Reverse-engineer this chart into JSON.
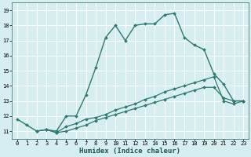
{
  "xlabel": "Humidex (Indice chaleur)",
  "background_color": "#d6eef0",
  "grid_color": "#ffffff",
  "line_color": "#2d7a6e",
  "xlim": [
    -0.5,
    23.5
  ],
  "ylim": [
    10.5,
    19.5
  ],
  "xticks": [
    0,
    1,
    2,
    3,
    4,
    5,
    6,
    7,
    8,
    9,
    10,
    11,
    12,
    13,
    14,
    15,
    16,
    17,
    18,
    19,
    20,
    21,
    22,
    23
  ],
  "yticks": [
    11,
    12,
    13,
    14,
    15,
    16,
    17,
    18,
    19
  ],
  "lines": [
    {
      "x": [
        0,
        1,
        2,
        3,
        4,
        5,
        6,
        7,
        8,
        9,
        10,
        11,
        12,
        13,
        14,
        15,
        16,
        17,
        18,
        19,
        20,
        21,
        22,
        23
      ],
      "y": [
        11.8,
        11.4,
        11.0,
        11.1,
        11.0,
        12.0,
        12.0,
        13.4,
        15.2,
        17.2,
        18.0,
        17.0,
        18.0,
        18.1,
        18.1,
        18.7,
        18.8,
        17.2,
        16.7,
        16.4,
        14.8,
        14.1,
        13.0,
        13.0
      ],
      "linewidth": 1.0
    },
    {
      "x": [
        2,
        3,
        4,
        5,
        6,
        7,
        8,
        9,
        10,
        11,
        12,
        13,
        14,
        15,
        16,
        17,
        18,
        19,
        20,
        21,
        22,
        23
      ],
      "y": [
        11.0,
        11.1,
        10.9,
        11.3,
        11.5,
        11.8,
        11.9,
        12.1,
        12.4,
        12.6,
        12.8,
        13.1,
        13.3,
        13.6,
        13.8,
        14.0,
        14.2,
        14.4,
        14.6,
        13.0,
        12.8,
        13.0
      ],
      "linewidth": 0.9
    },
    {
      "x": [
        2,
        3,
        4,
        5,
        6,
        7,
        8,
        9,
        10,
        11,
        12,
        13,
        14,
        15,
        16,
        17,
        18,
        19,
        20,
        21,
        22,
        23
      ],
      "y": [
        11.0,
        11.1,
        10.9,
        11.0,
        11.2,
        11.4,
        11.7,
        11.9,
        12.1,
        12.3,
        12.5,
        12.7,
        12.9,
        13.1,
        13.3,
        13.5,
        13.7,
        13.9,
        13.9,
        13.2,
        13.0,
        13.0
      ],
      "linewidth": 0.9
    }
  ],
  "marker": "D",
  "markersize": 2.0,
  "tick_fontsize": 5.0,
  "xlabel_fontsize": 6.5
}
